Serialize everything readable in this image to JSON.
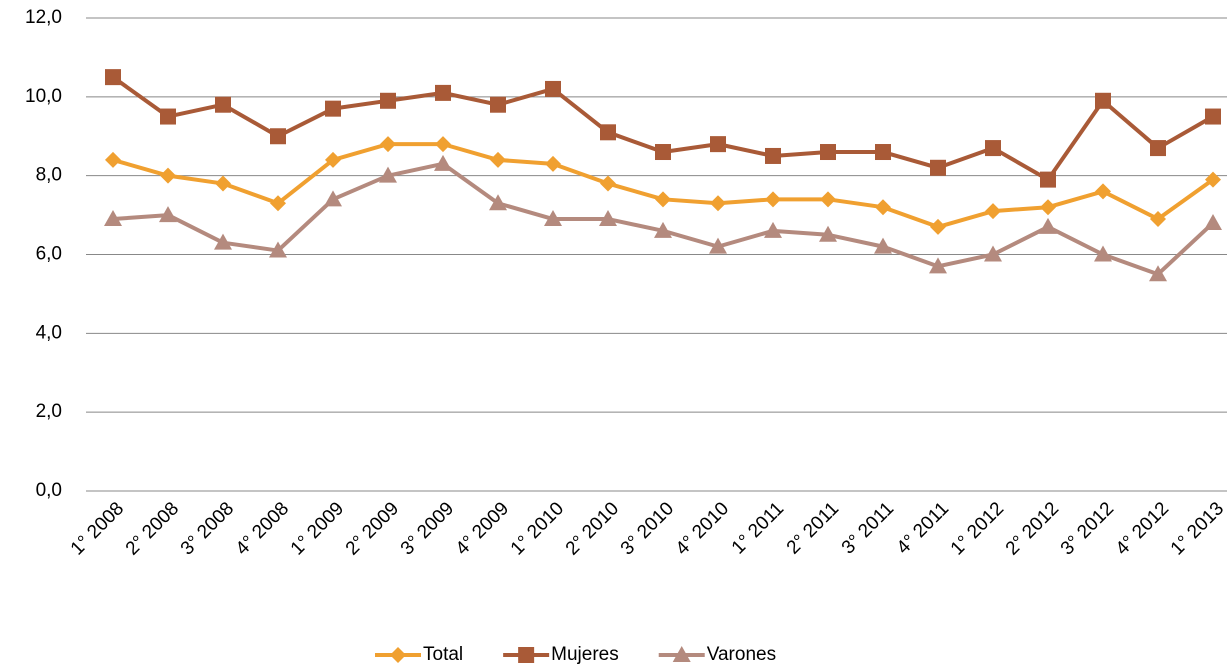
{
  "chart_data": {
    "type": "line",
    "categories": [
      "1° 2008",
      "2° 2008",
      "3° 2008",
      "4° 2008",
      "1° 2009",
      "2° 2009",
      "3° 2009",
      "4° 2009",
      "1° 2010",
      "2° 2010",
      "3° 2010",
      "4° 2010",
      "1° 2011",
      "2° 2011",
      "3° 2011",
      "4° 2011",
      "1° 2012",
      "2° 2012",
      "3° 2012",
      "4° 2012",
      "1° 2013"
    ],
    "series": [
      {
        "name": "Total",
        "color": "#f0a030",
        "marker": "diamond",
        "values": [
          8.4,
          8.0,
          7.8,
          7.3,
          8.4,
          8.8,
          8.8,
          8.4,
          8.3,
          7.8,
          7.4,
          7.3,
          7.4,
          7.4,
          7.2,
          6.7,
          7.1,
          7.2,
          7.6,
          6.9,
          7.9
        ]
      },
      {
        "name": "Mujeres",
        "color": "#a95a37",
        "marker": "square",
        "values": [
          10.5,
          9.5,
          9.8,
          9.0,
          9.7,
          9.9,
          10.1,
          9.8,
          10.2,
          9.1,
          8.6,
          8.8,
          8.5,
          8.6,
          8.6,
          8.2,
          8.7,
          7.9,
          9.9,
          8.7,
          9.5
        ]
      },
      {
        "name": "Varones",
        "color": "#b48a7e",
        "marker": "triangle",
        "values": [
          6.9,
          7.0,
          6.3,
          6.1,
          7.4,
          8.0,
          8.3,
          7.3,
          6.9,
          6.9,
          6.6,
          6.2,
          6.6,
          6.5,
          6.2,
          5.7,
          6.0,
          6.7,
          6.0,
          5.5,
          6.8
        ]
      }
    ],
    "ylim": [
      0,
      12
    ],
    "yticks": [
      {
        "value": 0,
        "label": "0,0"
      },
      {
        "value": 2,
        "label": "2,0"
      },
      {
        "value": 4,
        "label": "4,0"
      },
      {
        "value": 6,
        "label": "6,0"
      },
      {
        "value": 8,
        "label": "8,0"
      },
      {
        "value": 10,
        "label": "10,0"
      },
      {
        "value": 12,
        "label": "12,0"
      }
    ],
    "grid": true,
    "legend": "bottom"
  }
}
